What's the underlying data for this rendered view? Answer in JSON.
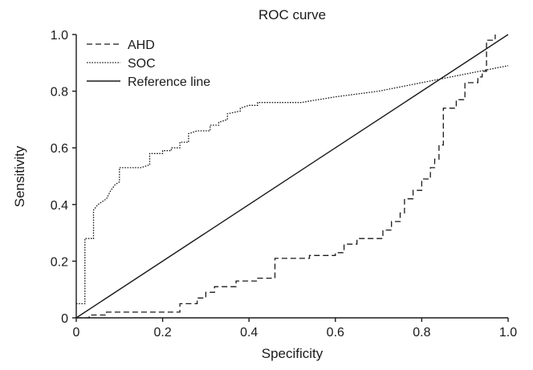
{
  "chart_data": {
    "type": "line",
    "title": "ROC curve",
    "xlabel": "Specificity",
    "ylabel": "Sensitivity",
    "xlim": [
      0,
      1
    ],
    "ylim": [
      0,
      1
    ],
    "x_ticks": [
      "0",
      "0.2",
      "0.4",
      "0.6",
      "0.8",
      "1.0"
    ],
    "y_ticks": [
      "0",
      "0.2",
      "0.4",
      "0.6",
      "0.8",
      "1.0"
    ],
    "grid": false,
    "legend_position": "top-left",
    "series": [
      {
        "name": "AHD",
        "style": "dashed",
        "color": "#1a1a1a",
        "points": [
          [
            0,
            0
          ],
          [
            0.03,
            0
          ],
          [
            0.03,
            0.01
          ],
          [
            0.07,
            0.01
          ],
          [
            0.07,
            0.02
          ],
          [
            0.24,
            0.02
          ],
          [
            0.24,
            0.05
          ],
          [
            0.28,
            0.05
          ],
          [
            0.28,
            0.07
          ],
          [
            0.3,
            0.07
          ],
          [
            0.3,
            0.09
          ],
          [
            0.32,
            0.09
          ],
          [
            0.32,
            0.11
          ],
          [
            0.37,
            0.11
          ],
          [
            0.37,
            0.13
          ],
          [
            0.42,
            0.13
          ],
          [
            0.42,
            0.14
          ],
          [
            0.46,
            0.14
          ],
          [
            0.46,
            0.21
          ],
          [
            0.54,
            0.21
          ],
          [
            0.54,
            0.22
          ],
          [
            0.6,
            0.22
          ],
          [
            0.6,
            0.23
          ],
          [
            0.62,
            0.23
          ],
          [
            0.62,
            0.26
          ],
          [
            0.65,
            0.26
          ],
          [
            0.65,
            0.28
          ],
          [
            0.71,
            0.28
          ],
          [
            0.71,
            0.31
          ],
          [
            0.73,
            0.31
          ],
          [
            0.73,
            0.34
          ],
          [
            0.75,
            0.34
          ],
          [
            0.75,
            0.37
          ],
          [
            0.76,
            0.37
          ],
          [
            0.76,
            0.42
          ],
          [
            0.78,
            0.42
          ],
          [
            0.78,
            0.45
          ],
          [
            0.8,
            0.45
          ],
          [
            0.8,
            0.49
          ],
          [
            0.82,
            0.49
          ],
          [
            0.82,
            0.53
          ],
          [
            0.83,
            0.53
          ],
          [
            0.83,
            0.56
          ],
          [
            0.84,
            0.56
          ],
          [
            0.84,
            0.61
          ],
          [
            0.85,
            0.61
          ],
          [
            0.85,
            0.74
          ],
          [
            0.88,
            0.74
          ],
          [
            0.88,
            0.77
          ],
          [
            0.9,
            0.77
          ],
          [
            0.9,
            0.83
          ],
          [
            0.93,
            0.83
          ],
          [
            0.93,
            0.85
          ],
          [
            0.94,
            0.85
          ],
          [
            0.94,
            0.87
          ],
          [
            0.95,
            0.87
          ],
          [
            0.95,
            0.98
          ],
          [
            0.97,
            0.98
          ],
          [
            0.97,
            1.0
          ]
        ]
      },
      {
        "name": "SOC",
        "style": "dotted",
        "color": "#1a1a1a",
        "points": [
          [
            0,
            0.05
          ],
          [
            0.01,
            0.05
          ],
          [
            0.02,
            0.05
          ],
          [
            0.02,
            0.28
          ],
          [
            0.04,
            0.28
          ],
          [
            0.04,
            0.38
          ],
          [
            0.05,
            0.4
          ],
          [
            0.06,
            0.41
          ],
          [
            0.07,
            0.42
          ],
          [
            0.08,
            0.45
          ],
          [
            0.09,
            0.47
          ],
          [
            0.1,
            0.48
          ],
          [
            0.1,
            0.53
          ],
          [
            0.15,
            0.53
          ],
          [
            0.17,
            0.54
          ],
          [
            0.17,
            0.58
          ],
          [
            0.2,
            0.58
          ],
          [
            0.2,
            0.59
          ],
          [
            0.22,
            0.59
          ],
          [
            0.22,
            0.6
          ],
          [
            0.24,
            0.6
          ],
          [
            0.24,
            0.62
          ],
          [
            0.26,
            0.62
          ],
          [
            0.26,
            0.65
          ],
          [
            0.28,
            0.66
          ],
          [
            0.31,
            0.66
          ],
          [
            0.31,
            0.68
          ],
          [
            0.33,
            0.68
          ],
          [
            0.33,
            0.69
          ],
          [
            0.35,
            0.7
          ],
          [
            0.35,
            0.72
          ],
          [
            0.38,
            0.73
          ],
          [
            0.38,
            0.74
          ],
          [
            0.4,
            0.75
          ],
          [
            0.42,
            0.75
          ],
          [
            0.42,
            0.76
          ],
          [
            0.52,
            0.76
          ],
          [
            0.6,
            0.78
          ],
          [
            0.7,
            0.8
          ],
          [
            0.8,
            0.83
          ],
          [
            0.9,
            0.86
          ],
          [
            1.0,
            0.89
          ]
        ]
      },
      {
        "name": "Reference line",
        "style": "solid",
        "color": "#1a1a1a",
        "points": [
          [
            0,
            0
          ],
          [
            1,
            1
          ]
        ]
      }
    ]
  }
}
